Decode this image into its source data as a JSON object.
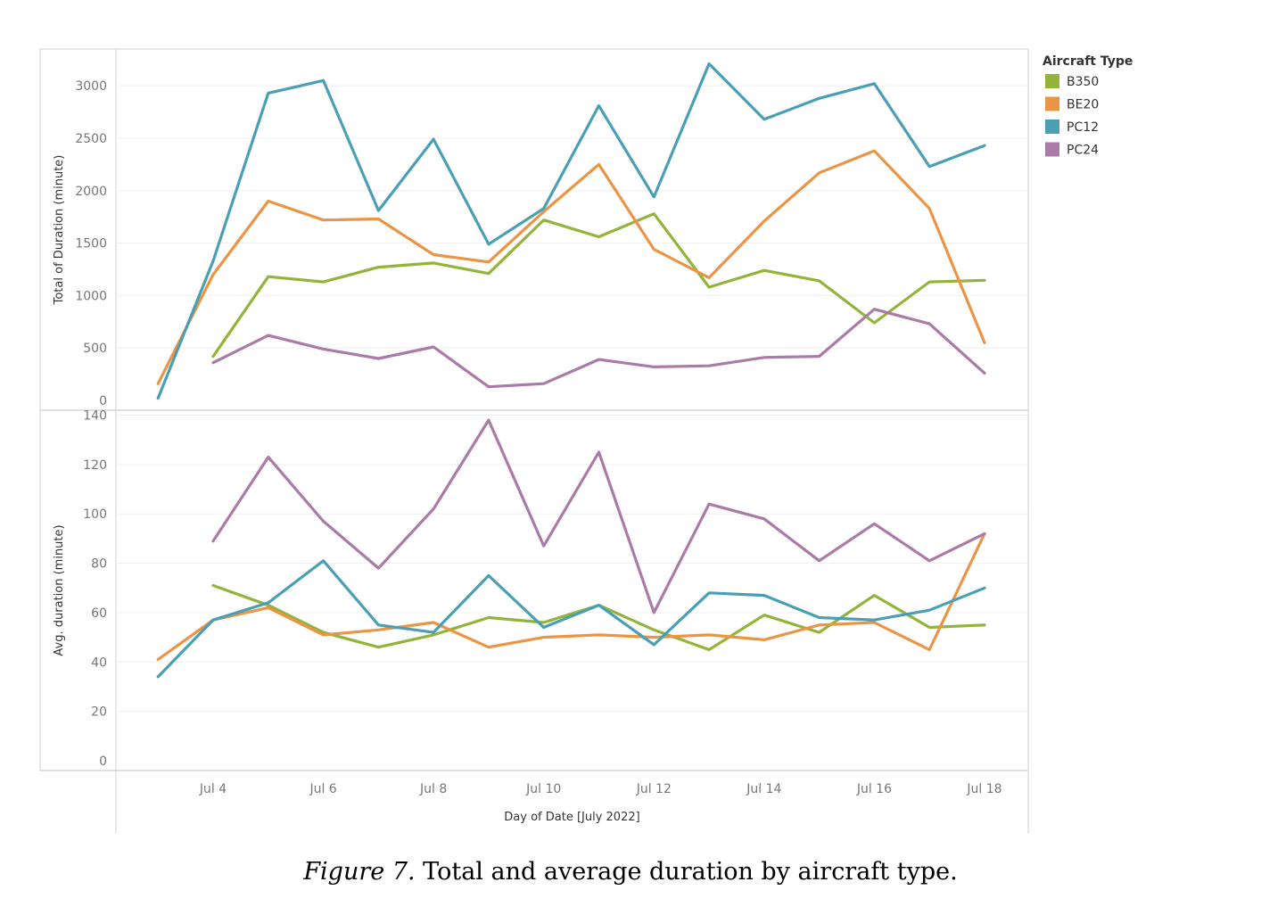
{
  "caption": {
    "label": "Figure 7.",
    "text": " Total and average duration by aircraft type."
  },
  "chart_data": {
    "type": "line",
    "xlabel": "Day of Date [July 2022]",
    "x_ticks": [
      "Jul 4",
      "Jul 6",
      "Jul 8",
      "Jul 10",
      "Jul 12",
      "Jul 14",
      "Jul 16",
      "Jul 18"
    ],
    "x_tick_days": [
      4,
      6,
      8,
      10,
      12,
      14,
      16,
      18
    ],
    "xlim_days": [
      2,
      18.4
    ],
    "legend": {
      "title": "Aircraft Type",
      "placement": "top-right",
      "entries": [
        "B350",
        "BE20",
        "PC12",
        "PC24"
      ]
    },
    "colors": {
      "B350": "#94b33b",
      "BE20": "#ea9545",
      "PC12": "#4a9fb5",
      "PC24": "#a97ba6"
    },
    "panels": [
      {
        "ylabel": "Total of Duration (minute)",
        "ylim": [
          0,
          3350
        ],
        "y_ticks": [
          0,
          500,
          1000,
          1500,
          2000,
          2500,
          3000
        ],
        "series": [
          {
            "name": "B350",
            "x": [
              4,
              5,
              6,
              7,
              8,
              9,
              10,
              11,
              12,
              13,
              14,
              15,
              16,
              17,
              18
            ],
            "values": [
              420,
              1180,
              1130,
              1270,
              1310,
              1210,
              1720,
              1560,
              1780,
              1080,
              1240,
              1140,
              740,
              1130,
              1145
            ]
          },
          {
            "name": "BE20",
            "x": [
              3,
              4,
              5,
              6,
              7,
              8,
              9,
              10,
              11,
              12,
              13,
              14,
              15,
              16,
              17,
              18
            ],
            "values": [
              160,
              1200,
              1900,
              1720,
              1730,
              1390,
              1320,
              1800,
              2250,
              1440,
              1170,
              1710,
              2170,
              2380,
              1830,
              550
            ]
          },
          {
            "name": "PC12",
            "x": [
              3,
              4,
              5,
              6,
              7,
              8,
              9,
              10,
              11,
              12,
              13,
              14,
              15,
              16,
              17,
              18
            ],
            "values": [
              20,
              1330,
              2930,
              3050,
              1810,
              2490,
              1490,
              1830,
              2810,
              1940,
              3210,
              2680,
              2880,
              3020,
              2230,
              2430
            ]
          },
          {
            "name": "PC24",
            "x": [
              4,
              5,
              6,
              7,
              8,
              9,
              10,
              11,
              12,
              13,
              14,
              15,
              16,
              17,
              18
            ],
            "values": [
              360,
              620,
              490,
              400,
              510,
              130,
              160,
              390,
              320,
              330,
              410,
              420,
              870,
              730,
              260
            ]
          }
        ]
      },
      {
        "ylabel": "Avg. duration (minute)",
        "ylim": [
          0,
          142
        ],
        "y_ticks": [
          0,
          20,
          40,
          60,
          80,
          100,
          120,
          140
        ],
        "series": [
          {
            "name": "B350",
            "x": [
              4,
              5,
              6,
              7,
              8,
              9,
              10,
              11,
              12,
              13,
              14,
              15,
              16,
              17,
              18
            ],
            "values": [
              71,
              63,
              52,
              46,
              51,
              58,
              56,
              63,
              53,
              45,
              59,
              52,
              67,
              54,
              55
            ]
          },
          {
            "name": "BE20",
            "x": [
              3,
              4,
              5,
              6,
              7,
              8,
              9,
              10,
              11,
              12,
              13,
              14,
              15,
              16,
              17,
              18
            ],
            "values": [
              41,
              57,
              62,
              51,
              53,
              56,
              46,
              50,
              51,
              50,
              51,
              49,
              55,
              56,
              45,
              92
            ]
          },
          {
            "name": "PC12",
            "x": [
              3,
              4,
              5,
              6,
              7,
              8,
              9,
              10,
              11,
              12,
              13,
              14,
              15,
              16,
              17,
              18
            ],
            "values": [
              34,
              57,
              64,
              81,
              55,
              52,
              75,
              54,
              63,
              47,
              68,
              67,
              58,
              57,
              61,
              70
            ]
          },
          {
            "name": "PC24",
            "x": [
              4,
              5,
              6,
              7,
              8,
              9,
              10,
              11,
              12,
              13,
              14,
              15,
              16,
              17,
              18
            ],
            "values": [
              89,
              123,
              97,
              78,
              102,
              138,
              87,
              125,
              60,
              104,
              98,
              81,
              96,
              81,
              92
            ]
          }
        ]
      }
    ]
  }
}
